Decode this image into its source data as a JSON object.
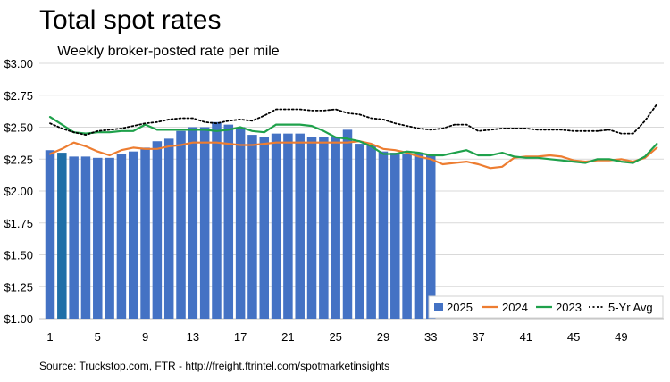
{
  "title": "Total spot rates",
  "subtitle": "Weekly broker-posted rate per mile",
  "source": "Source: Truckstop.com, FTR - http://freight.ftrintel.com/spotmarketinsights",
  "colors": {
    "bar": "#4472c4",
    "bar_highlight": "#1f6fa8",
    "y2024": "#ed7d31",
    "y2023": "#1fa14b",
    "avg": "#000000",
    "grid": "#d9d9d9"
  },
  "chart_data": {
    "type": "bar",
    "title": "Total spot rates",
    "subtitle": "Weekly broker-posted rate per mile",
    "xlabel": "",
    "ylabel": "",
    "ylim": [
      1.0,
      3.0
    ],
    "yticks": [
      "$1.00",
      "$1.25",
      "$1.50",
      "$1.75",
      "$2.00",
      "$2.25",
      "$2.50",
      "$2.75",
      "$3.00"
    ],
    "yvalues": [
      1.0,
      1.25,
      1.5,
      1.75,
      2.0,
      2.25,
      2.5,
      2.75,
      3.0
    ],
    "xticks": [
      "1",
      "5",
      "9",
      "13",
      "17",
      "21",
      "25",
      "29",
      "33",
      "37",
      "41",
      "45",
      "49"
    ],
    "xtick_weeks": [
      1,
      5,
      9,
      13,
      17,
      21,
      25,
      29,
      33,
      37,
      41,
      45,
      49
    ],
    "weeks": 52,
    "legend_position": "bottom-right",
    "series": [
      {
        "name": "2025",
        "kind": "bar",
        "highlight_week": 2,
        "values": [
          2.32,
          2.3,
          2.27,
          2.27,
          2.26,
          2.26,
          2.29,
          2.31,
          2.34,
          2.39,
          2.41,
          2.47,
          2.5,
          2.5,
          2.54,
          2.52,
          2.5,
          2.44,
          2.42,
          2.45,
          2.45,
          2.45,
          2.42,
          2.42,
          2.42,
          2.48,
          2.37,
          2.36,
          2.31,
          2.3,
          2.29,
          2.3,
          2.29
        ]
      },
      {
        "name": "2024",
        "kind": "line",
        "values": [
          2.29,
          2.33,
          2.38,
          2.35,
          2.31,
          2.28,
          2.32,
          2.34,
          2.33,
          2.33,
          2.35,
          2.36,
          2.38,
          2.38,
          2.38,
          2.37,
          2.36,
          2.36,
          2.37,
          2.38,
          2.38,
          2.38,
          2.38,
          2.38,
          2.38,
          2.38,
          2.39,
          2.37,
          2.33,
          2.32,
          2.3,
          2.27,
          2.25,
          2.21,
          2.22,
          2.23,
          2.21,
          2.18,
          2.19,
          2.26,
          2.27,
          2.27,
          2.28,
          2.27,
          2.24,
          2.23,
          2.24,
          2.24,
          2.25,
          2.23,
          2.26,
          2.34
        ]
      },
      {
        "name": "2023",
        "kind": "line",
        "values": [
          2.58,
          2.52,
          2.46,
          2.45,
          2.46,
          2.46,
          2.47,
          2.47,
          2.52,
          2.48,
          2.48,
          2.48,
          2.48,
          2.48,
          2.47,
          2.48,
          2.5,
          2.47,
          2.46,
          2.52,
          2.52,
          2.52,
          2.51,
          2.47,
          2.42,
          2.41,
          2.39,
          2.35,
          2.29,
          2.29,
          2.31,
          2.3,
          2.28,
          2.28,
          2.3,
          2.32,
          2.28,
          2.28,
          2.3,
          2.27,
          2.26,
          2.26,
          2.25,
          2.24,
          2.23,
          2.22,
          2.25,
          2.25,
          2.23,
          2.22,
          2.27,
          2.37
        ]
      },
      {
        "name": "5-Yr Avg",
        "kind": "dotted-line",
        "values": [
          2.53,
          2.49,
          2.46,
          2.44,
          2.47,
          2.48,
          2.49,
          2.51,
          2.53,
          2.54,
          2.56,
          2.57,
          2.57,
          2.54,
          2.53,
          2.55,
          2.56,
          2.55,
          2.59,
          2.64,
          2.64,
          2.64,
          2.63,
          2.63,
          2.64,
          2.61,
          2.6,
          2.57,
          2.56,
          2.53,
          2.51,
          2.49,
          2.48,
          2.49,
          2.52,
          2.52,
          2.47,
          2.48,
          2.49,
          2.49,
          2.49,
          2.48,
          2.48,
          2.48,
          2.47,
          2.47,
          2.47,
          2.48,
          2.45,
          2.45,
          2.55,
          2.68
        ]
      }
    ]
  }
}
